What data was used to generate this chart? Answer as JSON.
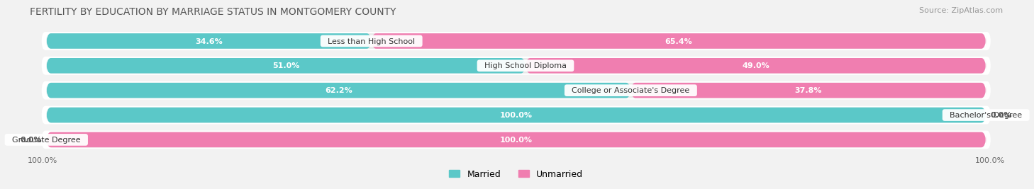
{
  "title": "FERTILITY BY EDUCATION BY MARRIAGE STATUS IN MONTGOMERY COUNTY",
  "source": "Source: ZipAtlas.com",
  "categories": [
    "Less than High School",
    "High School Diploma",
    "College or Associate's Degree",
    "Bachelor's Degree",
    "Graduate Degree"
  ],
  "married": [
    34.6,
    51.0,
    62.2,
    100.0,
    0.0
  ],
  "unmarried": [
    65.4,
    49.0,
    37.8,
    0.0,
    100.0
  ],
  "married_color": "#5BC8C8",
  "married_color_light": "#A8DEDE",
  "unmarried_color": "#F07EB0",
  "unmarried_color_light": "#F5B8D0",
  "background_color": "#F2F2F2",
  "bar_bg_color": "#E8E8E8",
  "title_fontsize": 10,
  "source_fontsize": 8,
  "bar_label_fontsize": 8,
  "category_fontsize": 8,
  "legend_fontsize": 9,
  "bar_height": 0.62,
  "n_bars": 5
}
